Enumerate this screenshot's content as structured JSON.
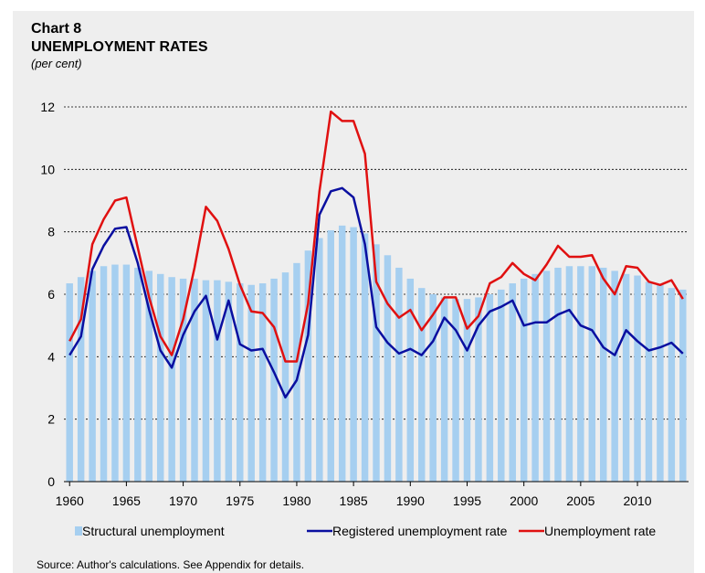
{
  "chart_data": {
    "type": "bar-line",
    "title": "Chart 8",
    "subtitle": "UNEMPLOYMENT RATES",
    "unit_label": "(per cent)",
    "source": "Source: Author's calculations. See Appendix for details.",
    "x": [
      1960,
      1961,
      1962,
      1963,
      1964,
      1965,
      1966,
      1967,
      1968,
      1969,
      1970,
      1971,
      1972,
      1973,
      1974,
      1975,
      1976,
      1977,
      1978,
      1979,
      1980,
      1981,
      1982,
      1983,
      1984,
      1985,
      1986,
      1987,
      1988,
      1989,
      1990,
      1991,
      1992,
      1993,
      1994,
      1995,
      1996,
      1997,
      1998,
      1999,
      2000,
      2001,
      2002,
      2003,
      2004,
      2005,
      2006,
      2007,
      2008,
      2009,
      2010,
      2011,
      2012,
      2013,
      2014
    ],
    "xlim": [
      1959.5,
      2014.5
    ],
    "xticks": [
      1960,
      1965,
      1970,
      1975,
      1980,
      1985,
      1990,
      1995,
      2000,
      2005,
      2010
    ],
    "ylim": [
      0,
      12
    ],
    "yticks": [
      0,
      2,
      4,
      6,
      8,
      10,
      12
    ],
    "grid": true,
    "legend": "bottom",
    "series": [
      {
        "name": "Structural unemployment",
        "type": "bar",
        "color": "#a6cff0",
        "values": [
          6.35,
          6.55,
          6.75,
          6.9,
          6.95,
          6.95,
          6.85,
          6.75,
          6.65,
          6.55,
          6.5,
          6.5,
          6.45,
          6.45,
          6.4,
          6.35,
          6.3,
          6.35,
          6.5,
          6.7,
          7.0,
          7.4,
          7.8,
          8.05,
          8.2,
          8.15,
          7.95,
          7.6,
          7.25,
          6.85,
          6.5,
          6.2,
          6.0,
          5.9,
          5.85,
          5.85,
          5.9,
          6.0,
          6.15,
          6.35,
          6.5,
          6.65,
          6.75,
          6.85,
          6.9,
          6.9,
          6.9,
          6.85,
          6.75,
          6.65,
          6.6,
          6.4,
          6.3,
          6.2,
          6.15
        ]
      },
      {
        "name": "Registered unemployment rate",
        "type": "line",
        "color": "#0a0fa0",
        "values": [
          4.05,
          4.65,
          6.8,
          7.55,
          8.1,
          8.15,
          7.0,
          5.5,
          4.2,
          3.65,
          4.7,
          5.45,
          5.95,
          4.55,
          5.8,
          4.4,
          4.2,
          4.25,
          3.5,
          2.7,
          3.25,
          4.7,
          8.55,
          9.3,
          9.4,
          9.1,
          7.6,
          4.95,
          4.45,
          4.1,
          4.25,
          4.05,
          4.5,
          5.25,
          4.85,
          4.2,
          5.0,
          5.45,
          5.6,
          5.8,
          5.0,
          5.1,
          5.1,
          5.35,
          5.5,
          5.0,
          4.85,
          4.3,
          4.05,
          4.85,
          4.5,
          4.2,
          4.3,
          4.45,
          4.1
        ]
      },
      {
        "name": "Unemployment rate",
        "type": "line",
        "color": "#e01010",
        "values": [
          4.5,
          5.2,
          7.6,
          8.4,
          9.0,
          9.1,
          7.5,
          5.9,
          4.65,
          4.05,
          5.2,
          6.85,
          8.8,
          8.35,
          7.45,
          6.3,
          5.45,
          5.4,
          4.95,
          3.85,
          3.85,
          5.7,
          9.3,
          11.85,
          11.55,
          11.55,
          10.5,
          6.4,
          5.7,
          5.25,
          5.5,
          4.85,
          5.35,
          5.9,
          5.9,
          4.9,
          5.3,
          6.35,
          6.55,
          7.0,
          6.65,
          6.45,
          6.95,
          7.55,
          7.2,
          7.2,
          7.25,
          6.5,
          6.0,
          6.9,
          6.85,
          6.4,
          6.3,
          6.45,
          5.85
        ]
      }
    ]
  }
}
